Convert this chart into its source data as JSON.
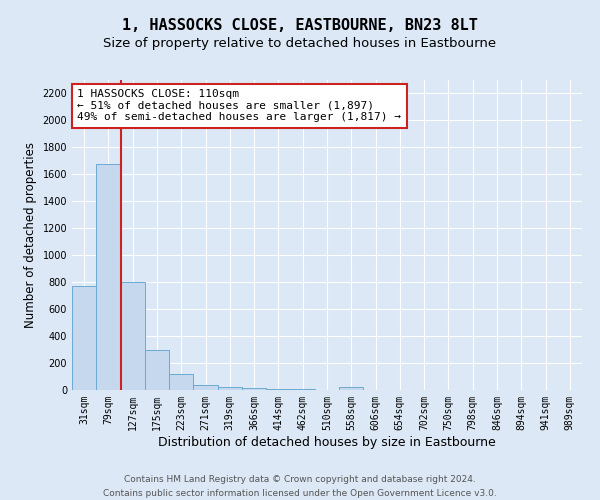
{
  "title": "1, HASSOCKS CLOSE, EASTBOURNE, BN23 8LT",
  "subtitle": "Size of property relative to detached houses in Eastbourne",
  "xlabel": "Distribution of detached houses by size in Eastbourne",
  "ylabel": "Number of detached properties",
  "categories": [
    "31sqm",
    "79sqm",
    "127sqm",
    "175sqm",
    "223sqm",
    "271sqm",
    "319sqm",
    "366sqm",
    "414sqm",
    "462sqm",
    "510sqm",
    "558sqm",
    "606sqm",
    "654sqm",
    "702sqm",
    "750sqm",
    "798sqm",
    "846sqm",
    "894sqm",
    "941sqm",
    "989sqm"
  ],
  "values": [
    775,
    1680,
    800,
    295,
    120,
    40,
    22,
    15,
    10,
    5,
    2,
    20,
    2,
    0,
    0,
    0,
    0,
    0,
    0,
    0,
    0
  ],
  "bar_color": "#c5d8ee",
  "bar_edge_color": "#6aaad4",
  "red_line_index": 2,
  "annotation_line1": "1 HASSOCKS CLOSE: 110sqm",
  "annotation_line2": "← 51% of detached houses are smaller (1,897)",
  "annotation_line3": "49% of semi-detached houses are larger (1,817) →",
  "annotation_box_color": "#ffffff",
  "annotation_box_edge_color": "#cc2222",
  "ylim": [
    0,
    2300
  ],
  "yticks": [
    0,
    200,
    400,
    600,
    800,
    1000,
    1200,
    1400,
    1600,
    1800,
    2000,
    2200
  ],
  "background_color": "#dce8f5",
  "grid_color": "#ffffff",
  "footer_line1": "Contains HM Land Registry data © Crown copyright and database right 2024.",
  "footer_line2": "Contains public sector information licensed under the Open Government Licence v3.0.",
  "title_fontsize": 11,
  "subtitle_fontsize": 9.5,
  "xlabel_fontsize": 9,
  "ylabel_fontsize": 8.5,
  "tick_fontsize": 7,
  "annotation_fontsize": 8,
  "footer_fontsize": 6.5
}
